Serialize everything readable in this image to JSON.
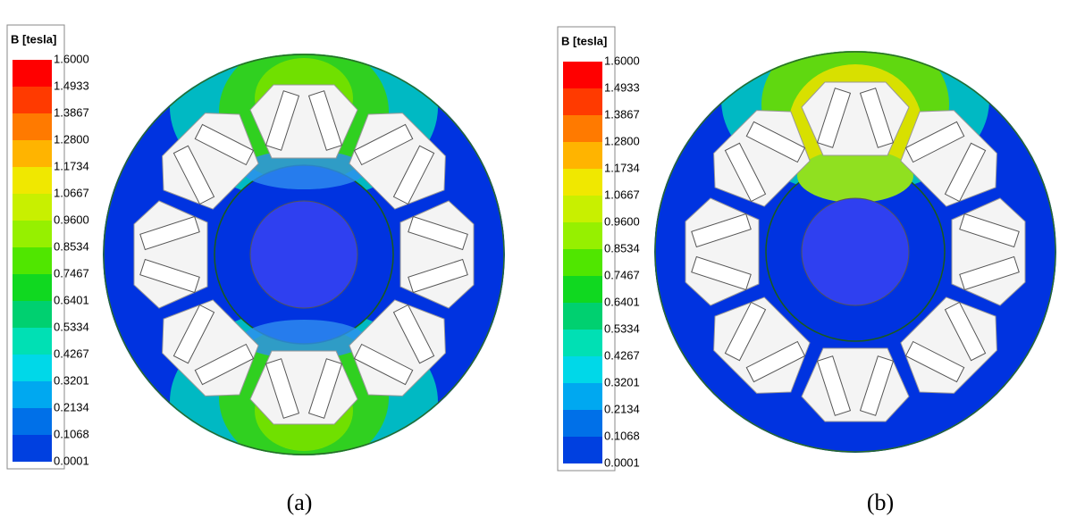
{
  "panels": [
    {
      "legend": {
        "title": "B [tesla]",
        "labels": [
          "1.6000",
          "1.4933",
          "1.3867",
          "1.2800",
          "1.1734",
          "1.0667",
          "0.9600",
          "0.8534",
          "0.7467",
          "0.6401",
          "0.5334",
          "0.4267",
          "0.3201",
          "0.2134",
          "0.1068",
          "0.0001"
        ]
      },
      "caption": "(a)"
    },
    {
      "legend": {
        "title": "B [tesla]",
        "labels": [
          "1.6000",
          "1.4933",
          "1.3867",
          "1.2800",
          "1.1734",
          "1.0667",
          "0.9600",
          "0.8534",
          "0.7467",
          "0.6401",
          "0.5334",
          "0.4267",
          "0.3201",
          "0.2134",
          "0.1068",
          "0.0001"
        ]
      },
      "caption": "(b)"
    }
  ]
}
